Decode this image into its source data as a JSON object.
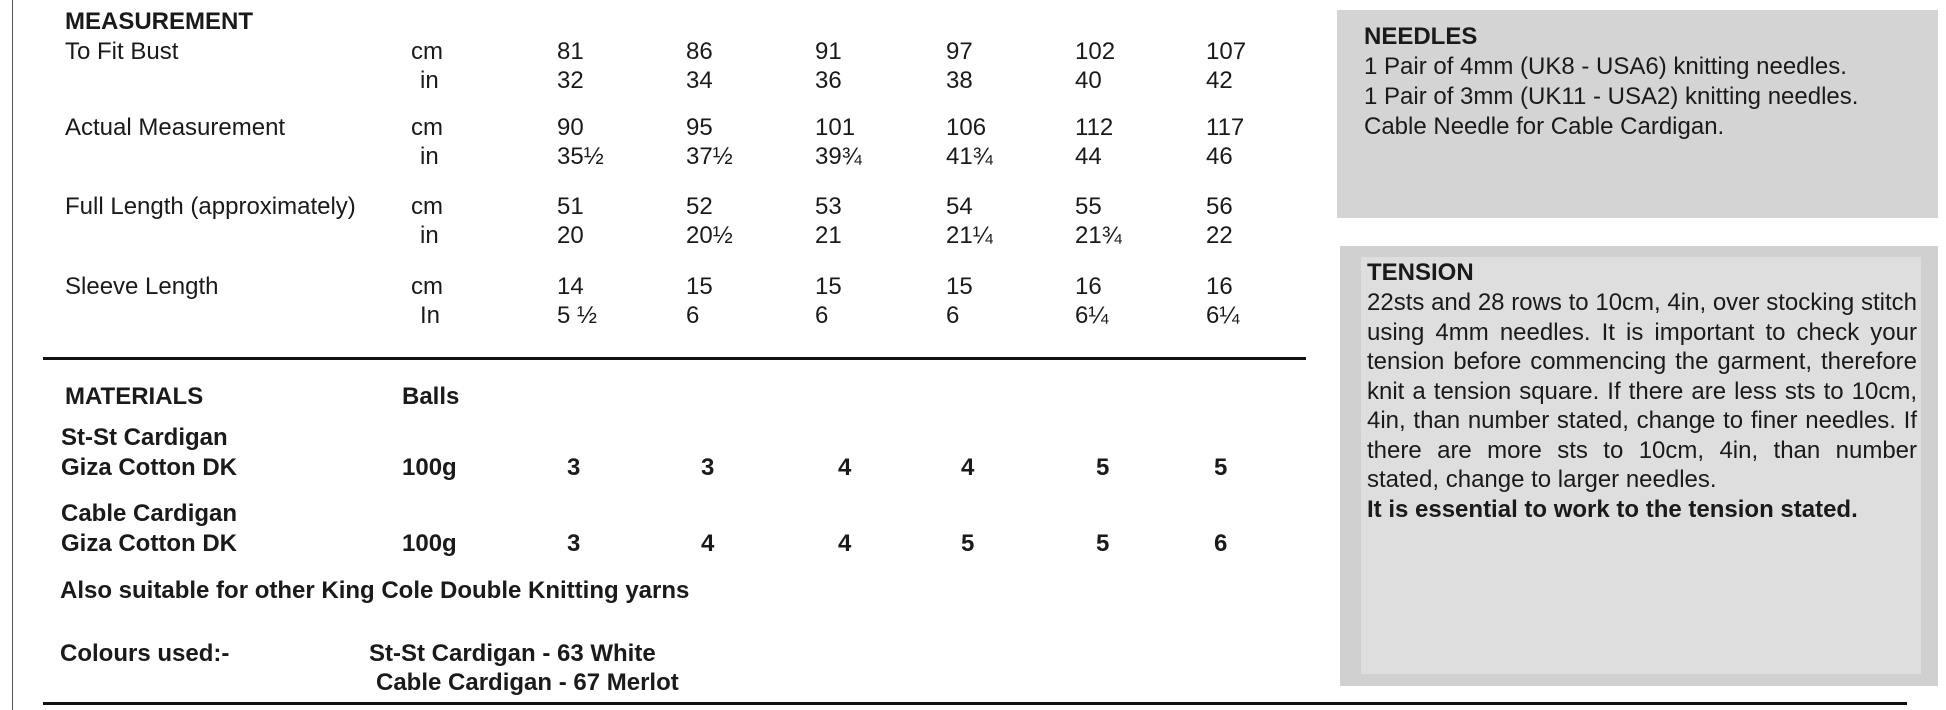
{
  "measurement": {
    "heading": "MEASUREMENT",
    "rows": [
      {
        "label": "To Fit Bust",
        "units": [
          "cm",
          "in"
        ],
        "values": [
          [
            "81",
            "86",
            "91",
            "97",
            "102",
            "107"
          ],
          [
            "32",
            "34",
            "36",
            "38",
            "40",
            "42"
          ]
        ]
      },
      {
        "label": "Actual Measurement",
        "units": [
          "cm",
          "in"
        ],
        "values": [
          [
            "90",
            "95",
            "101",
            "106",
            "112",
            "117"
          ],
          [
            "35½",
            "37½",
            "39¾",
            "41¾",
            "44",
            "46"
          ]
        ]
      },
      {
        "label": "Full Length (approximately)",
        "units": [
          "cm",
          "in"
        ],
        "values": [
          [
            "51",
            "52",
            "53",
            "54",
            "55",
            "56"
          ],
          [
            "20",
            "20½",
            "21",
            "21¼",
            "21¾",
            "22"
          ]
        ]
      },
      {
        "label": "Sleeve Length",
        "units": [
          "cm",
          "In"
        ],
        "values": [
          [
            "14",
            "15",
            "15",
            "15",
            "16",
            "16"
          ],
          [
            "5 ½",
            "6",
            "6",
            "6",
            "6¼",
            "6¼"
          ]
        ]
      }
    ]
  },
  "materials": {
    "heading": "MATERIALS",
    "unit_heading": "Balls",
    "yarns": [
      {
        "name": [
          "St-St Cardigan",
          "Giza Cotton DK"
        ],
        "weight": "100g",
        "balls": [
          3,
          3,
          4,
          4,
          5,
          5
        ]
      },
      {
        "name": [
          "Cable Cardigan",
          "Giza Cotton DK"
        ],
        "weight": "100g",
        "balls": [
          3,
          4,
          4,
          5,
          5,
          6
        ]
      }
    ],
    "note": "Also suitable for other King Cole Double Knitting yarns",
    "colours_label": "Colours used:-",
    "colours": [
      "St-St Cardigan - 63 White",
      "Cable Cardigan - 67 Merlot"
    ]
  },
  "needles": {
    "heading": "NEEDLES",
    "lines": [
      "1 Pair of 4mm (UK8 - USA6) knitting needles.",
      "1 Pair of 3mm (UK11 - USA2) knitting needles.",
      "Cable Needle for Cable Cardigan."
    ]
  },
  "tension": {
    "heading": "TENSION",
    "text": "22sts and 28 rows to 10cm, 4in, over stocking stitch using 4mm needles. It is important to check your tension before commencing the garment, therefore knit a tension square. If there are less sts to 10cm, 4in, than number stated, change to finer needles. If there are more sts to 10cm, 4in, than number stated, change to larger needles.",
    "emphasis": "It is essential to work to the tension stated."
  }
}
